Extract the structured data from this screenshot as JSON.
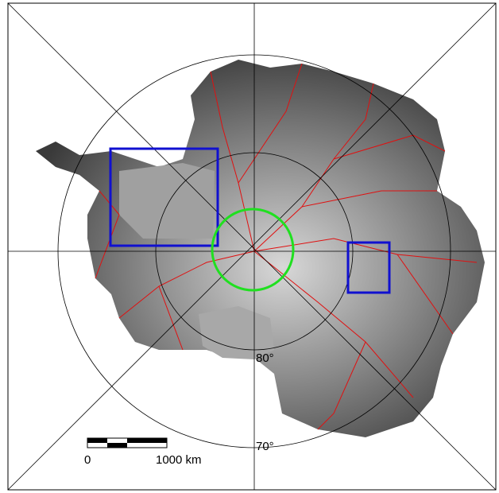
{
  "labels": {
    "lat_80": "80°",
    "lat_70": "70°",
    "scale_start": "0",
    "scale_end": "1000 km"
  }
}
